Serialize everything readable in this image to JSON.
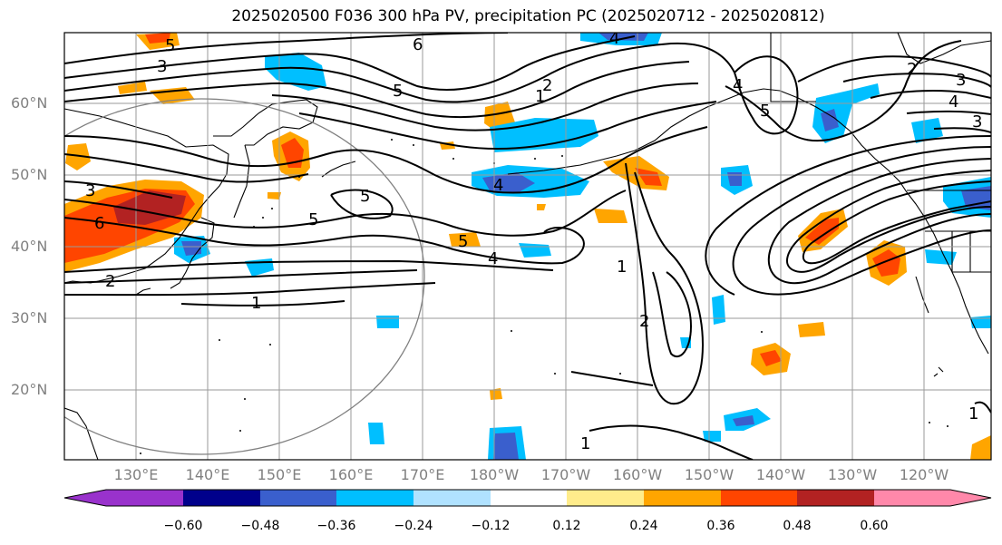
{
  "title": "2025020500 F036 300 hPa PV, precipitation PC (2025020712 - 2025020812)",
  "lat_labels": [
    "60°N",
    "50°N",
    "40°N",
    "30°N",
    "20°N"
  ],
  "lon_labels": [
    "130°E",
    "140°E",
    "150°E",
    "160°E",
    "170°E",
    "180°W",
    "170°W",
    "160°W",
    "150°W",
    "140°W",
    "130°W",
    "120°W"
  ],
  "colorbar": {
    "ticks": [
      "−0.60",
      "−0.48",
      "−0.36",
      "−0.24",
      "−0.12",
      "0.12",
      "0.24",
      "0.36",
      "0.48",
      "0.60"
    ],
    "colors": [
      "#9932cc",
      "#00008b",
      "#3a5fcd",
      "#00bfff",
      "#b0e2ff",
      "#ffffff",
      "#ffec8b",
      "#ffa500",
      "#ff4500",
      "#b22222",
      "#ff88aa"
    ]
  },
  "pv_contour_labels": [
    "1",
    "2",
    "3",
    "4",
    "5",
    "6"
  ]
}
